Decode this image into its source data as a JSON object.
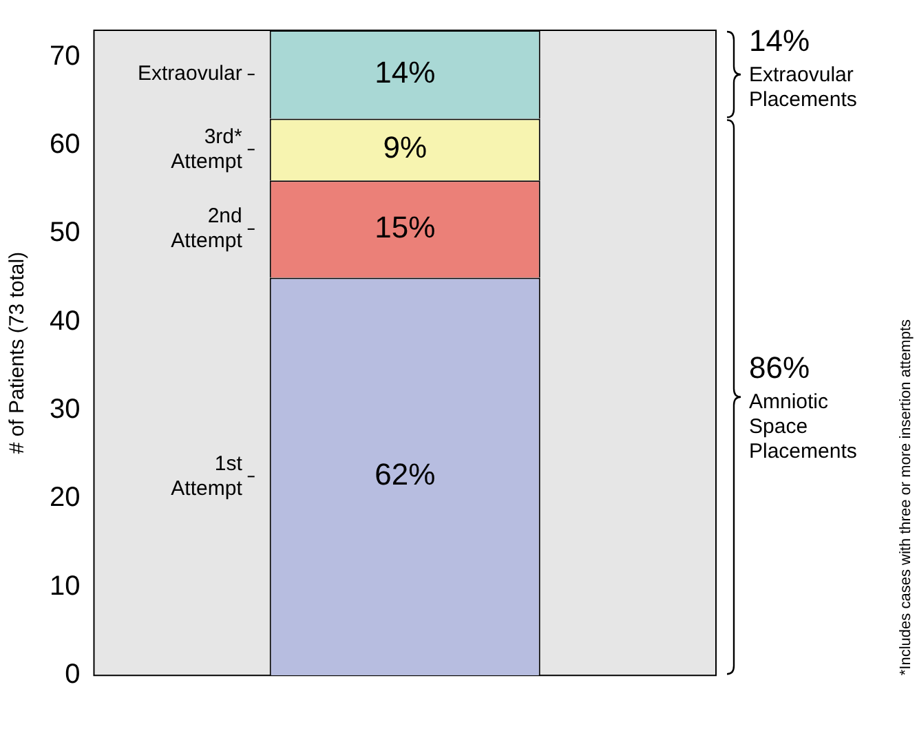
{
  "chart_data": {
    "type": "bar",
    "stacked": true,
    "ylabel": "# of Patients (73 total)",
    "categories": [
      null
    ],
    "series": [
      {
        "name": "1st\nAttempt",
        "color": "#b7bde0",
        "values": [
          45
        ]
      },
      {
        "name": "2nd\nAttempt",
        "color": "#eb8078",
        "values": [
          11
        ]
      },
      {
        "name": "3rd*\nAttempt",
        "color": "#f7f4b0",
        "values": [
          7
        ]
      },
      {
        "name": "Extraovular",
        "color": "#a9d8d5",
        "values": [
          10
        ]
      }
    ],
    "ylim": [
      0,
      73
    ],
    "yticks": [
      0,
      10,
      20,
      30,
      40,
      50,
      60,
      70
    ],
    "grid": false,
    "legend": false,
    "annotations": [
      "62%",
      "15%",
      "9%",
      "14%",
      "14%\nExtraovular\nPlacements",
      "86%\nAmniotic\nSpace\nPlacements",
      "*Includes cases with three or more insertion attempts"
    ]
  }
}
